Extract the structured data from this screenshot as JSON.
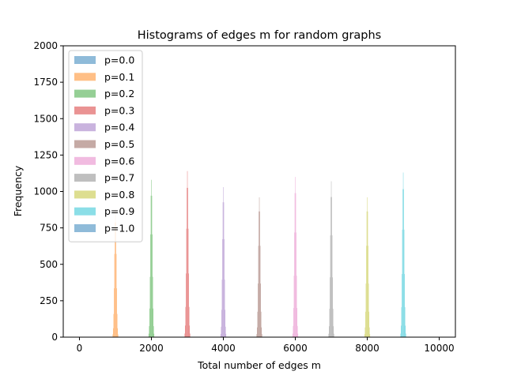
{
  "chart_data": {
    "type": "histogram",
    "title": "Histograms of edges m for random graphs",
    "xlabel": "Total number of edges m",
    "ylabel": "Frequency",
    "xlim": [
      -450,
      10450
    ],
    "ylim": [
      0,
      2000
    ],
    "xticks": [
      "0",
      "2000",
      "4000",
      "6000",
      "8000",
      "10000"
    ],
    "xtick_values": [
      0,
      2000,
      4000,
      6000,
      8000,
      10000
    ],
    "yticks": [
      "0",
      "250",
      "500",
      "750",
      "1000",
      "1250",
      "1500",
      "1750",
      "2000"
    ],
    "ytick_values": [
      0,
      250,
      500,
      750,
      1000,
      1250,
      1500,
      1750,
      2000
    ],
    "legend_position": "upper left",
    "bar_alpha": 0.5,
    "series": [
      {
        "name": "p=0.0",
        "color": "#1f77b4",
        "center": 0,
        "peak": 0
      },
      {
        "name": "p=0.1",
        "color": "#ff7f0e",
        "center": 1000,
        "peak": 875
      },
      {
        "name": "p=0.2",
        "color": "#2ca02c",
        "center": 2000,
        "peak": 1080
      },
      {
        "name": "p=0.3",
        "color": "#d62728",
        "center": 3000,
        "peak": 1140
      },
      {
        "name": "p=0.4",
        "color": "#9467bd",
        "center": 4000,
        "peak": 1030
      },
      {
        "name": "p=0.5",
        "color": "#8c564b",
        "center": 5000,
        "peak": 960
      },
      {
        "name": "p=0.6",
        "color": "#e377c2",
        "center": 6000,
        "peak": 1100
      },
      {
        "name": "p=0.7",
        "color": "#7f7f7f",
        "center": 7000,
        "peak": 1070
      },
      {
        "name": "p=0.8",
        "color": "#bcbd22",
        "center": 8000,
        "peak": 960
      },
      {
        "name": "p=0.9",
        "color": "#17becf",
        "center": 9000,
        "peak": 1130
      },
      {
        "name": "p=1.0",
        "color": "#1f77b4",
        "center": 10000,
        "peak": 0
      }
    ]
  }
}
